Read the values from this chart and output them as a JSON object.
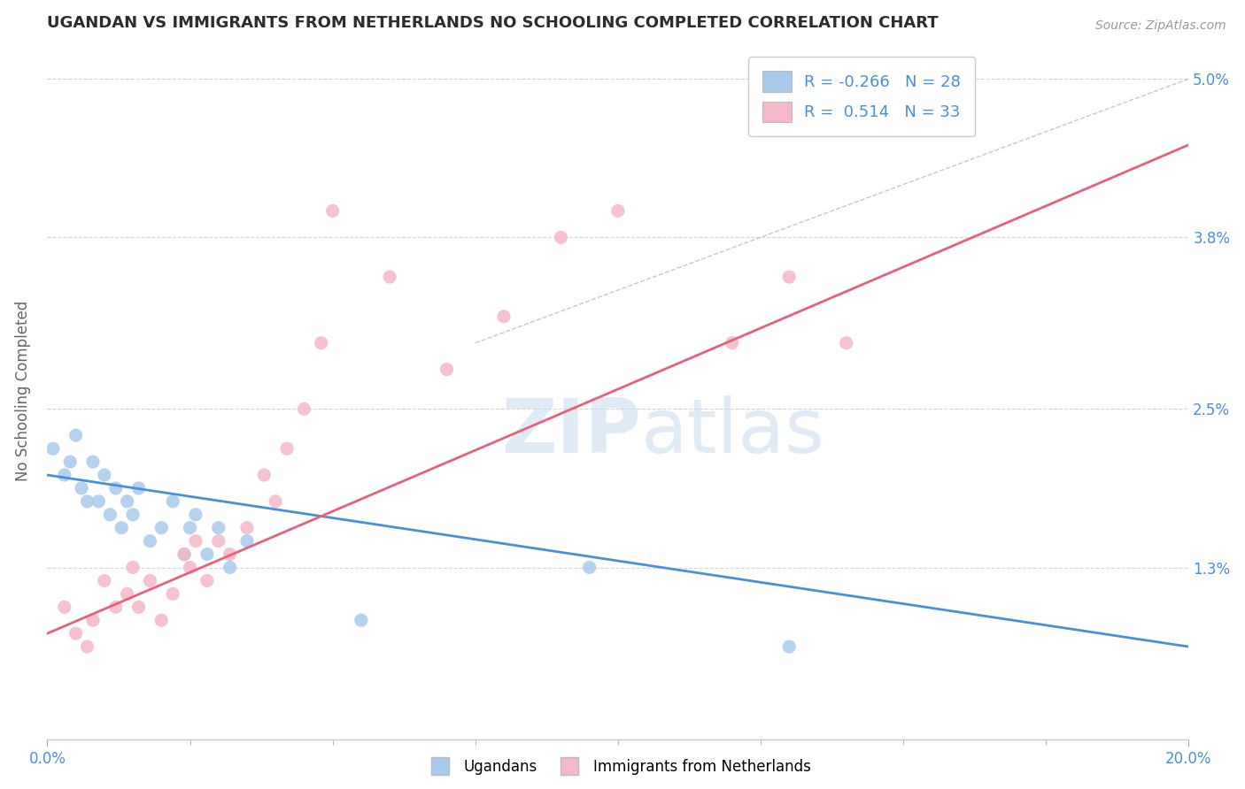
{
  "title": "UGANDAN VS IMMIGRANTS FROM NETHERLANDS NO SCHOOLING COMPLETED CORRELATION CHART",
  "source": "Source: ZipAtlas.com",
  "ylabel": "No Schooling Completed",
  "ylabel_ticks_labels": [
    "",
    "1.3%",
    "2.5%",
    "3.8%",
    "5.0%"
  ],
  "ylabel_values": [
    0.0,
    0.013,
    0.025,
    0.038,
    0.05
  ],
  "xlim": [
    0.0,
    0.2
  ],
  "ylim": [
    0.0,
    0.0528
  ],
  "watermark_zip": "ZIP",
  "watermark_atlas": "atlas",
  "legend_blue_label": "R = -0.266   N = 28",
  "legend_pink_label": "R =  0.514   N = 33",
  "blue_scatter_color": "#A8CAEC",
  "pink_scatter_color": "#F5B8C8",
  "blue_line_color": "#4A90D9",
  "pink_line_color": "#E8607A",
  "title_color": "#2C2C2C",
  "axis_label_color": "#666666",
  "tick_color": "#4A90D9",
  "grid_color": "#CCCCCC",
  "background_color": "#FFFFFF",
  "blue_trend_x": [
    0.0,
    0.2
  ],
  "blue_trend_y": [
    0.02,
    0.007
  ],
  "pink_trend_x": [
    0.0,
    0.2
  ],
  "pink_trend_y": [
    0.008,
    0.045
  ],
  "ref_line_x": [
    0.075,
    0.2
  ],
  "ref_line_y": [
    0.03,
    0.05
  ],
  "ugandan_x": [
    0.001,
    0.003,
    0.004,
    0.005,
    0.006,
    0.007,
    0.008,
    0.009,
    0.01,
    0.011,
    0.012,
    0.013,
    0.014,
    0.015,
    0.016,
    0.018,
    0.02,
    0.022,
    0.024,
    0.025,
    0.026,
    0.028,
    0.03,
    0.032,
    0.035,
    0.095,
    0.13,
    0.055
  ],
  "ugandan_y": [
    0.022,
    0.02,
    0.021,
    0.023,
    0.019,
    0.018,
    0.021,
    0.018,
    0.02,
    0.017,
    0.019,
    0.016,
    0.018,
    0.017,
    0.019,
    0.015,
    0.016,
    0.018,
    0.014,
    0.016,
    0.017,
    0.014,
    0.016,
    0.013,
    0.015,
    0.013,
    0.007,
    0.009
  ],
  "netherlands_x": [
    0.003,
    0.005,
    0.007,
    0.008,
    0.01,
    0.012,
    0.014,
    0.015,
    0.016,
    0.018,
    0.02,
    0.022,
    0.024,
    0.025,
    0.026,
    0.028,
    0.03,
    0.032,
    0.035,
    0.038,
    0.04,
    0.042,
    0.045,
    0.048,
    0.05,
    0.06,
    0.07,
    0.08,
    0.09,
    0.1,
    0.12,
    0.13,
    0.14
  ],
  "netherlands_y": [
    0.01,
    0.008,
    0.007,
    0.009,
    0.012,
    0.01,
    0.011,
    0.013,
    0.01,
    0.012,
    0.009,
    0.011,
    0.014,
    0.013,
    0.015,
    0.012,
    0.015,
    0.014,
    0.016,
    0.02,
    0.018,
    0.022,
    0.025,
    0.03,
    0.04,
    0.035,
    0.028,
    0.032,
    0.038,
    0.04,
    0.03,
    0.035,
    0.03
  ]
}
